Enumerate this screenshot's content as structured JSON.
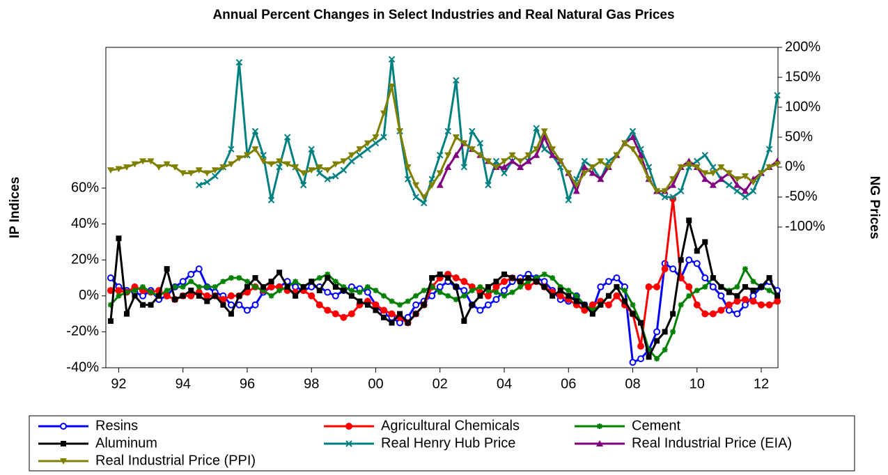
{
  "chart_data": {
    "type": "line",
    "title": "Annual Percent Changes in Select Industries and Real Natural Gas Prices",
    "y_label": "IP Indices",
    "y2_label": "NG Prices",
    "x": [
      1991.75,
      1992,
      1992.25,
      1992.5,
      1992.75,
      1993,
      1993.25,
      1993.5,
      1993.75,
      1994,
      1994.25,
      1994.5,
      1994.75,
      1995,
      1995.25,
      1995.5,
      1995.75,
      1996,
      1996.25,
      1996.5,
      1996.75,
      1997,
      1997.25,
      1997.5,
      1997.75,
      1998,
      1998.25,
      1998.5,
      1998.75,
      1999,
      1999.25,
      1999.5,
      1999.75,
      2000,
      2000.25,
      2000.5,
      2000.75,
      2001,
      2001.25,
      2001.5,
      2001.75,
      2002,
      2002.25,
      2002.5,
      2002.75,
      2003,
      2003.25,
      2003.5,
      2003.75,
      2004,
      2004.25,
      2004.5,
      2004.75,
      2005,
      2005.25,
      2005.5,
      2005.75,
      2006,
      2006.25,
      2006.5,
      2006.75,
      2007,
      2007.25,
      2007.5,
      2007.75,
      2008,
      2008.25,
      2008.5,
      2008.75,
      2009,
      2009.25,
      2009.5,
      2009.75,
      2010,
      2010.25,
      2010.5,
      2010.75,
      2011,
      2011.25,
      2011.5,
      2011.75,
      2012,
      2012.25,
      2012.5
    ],
    "xlim": [
      1991.6,
      2012.52
    ],
    "xticks": [
      {
        "value": 1992,
        "label": "92"
      },
      {
        "value": 1994,
        "label": "94"
      },
      {
        "value": 1996,
        "label": "96"
      },
      {
        "value": 1998,
        "label": "98"
      },
      {
        "value": 2000,
        "label": "00"
      },
      {
        "value": 2002,
        "label": "02"
      },
      {
        "value": 2004,
        "label": "04"
      },
      {
        "value": 2006,
        "label": "06"
      },
      {
        "value": 2008,
        "label": "08"
      },
      {
        "value": 2010,
        "label": "10"
      },
      {
        "value": 2012,
        "label": "12"
      }
    ],
    "ylim": [
      -40,
      138.3
    ],
    "yticks": [
      {
        "value": -40,
        "label": "-40%"
      },
      {
        "value": -20,
        "label": "-20%"
      },
      {
        "value": 0,
        "label": "0%"
      },
      {
        "value": 20,
        "label": "20%"
      },
      {
        "value": 40,
        "label": "40%"
      },
      {
        "value": 60,
        "label": "60%"
      }
    ],
    "y2lim": [
      -335,
      200
    ],
    "y2ticks": [
      {
        "value": -100,
        "label": "-100%"
      },
      {
        "value": -50,
        "label": "-50%"
      },
      {
        "value": 0,
        "label": "0%"
      },
      {
        "value": 50,
        "label": "50%"
      },
      {
        "value": 100,
        "label": "100%"
      },
      {
        "value": 150,
        "label": "150%"
      },
      {
        "value": 200,
        "label": "200%"
      }
    ],
    "legend": "bottom",
    "series": [
      {
        "name": "Resins",
        "color": "#0000ff",
        "marker": "circle-open",
        "values": [
          10,
          5,
          3,
          2,
          0,
          3,
          -2,
          0,
          5,
          8,
          12,
          15,
          5,
          2,
          0,
          -5,
          -5,
          -8,
          -5,
          2,
          5,
          5,
          8,
          5,
          3,
          5,
          5,
          2,
          0,
          3,
          5,
          4,
          2,
          -5,
          -10,
          -12,
          -15,
          -12,
          -5,
          -3,
          0,
          5,
          8,
          5,
          3,
          -5,
          -8,
          -5,
          -2,
          3,
          8,
          10,
          12,
          10,
          8,
          3,
          -2,
          -3,
          0,
          -5,
          -8,
          5,
          8,
          10,
          5,
          -37,
          -35,
          -30,
          -20,
          18,
          15,
          10,
          20,
          18,
          10,
          5,
          0,
          -8,
          -10,
          -5,
          0,
          5,
          8,
          3
        ]
      },
      {
        "name": "Agricultural Chemicals",
        "color": "#ff0000",
        "marker": "circle",
        "values": [
          3,
          3,
          2,
          5,
          3,
          2,
          3,
          0,
          -2,
          0,
          0,
          2,
          0,
          0,
          -2,
          0,
          0,
          2,
          5,
          3,
          5,
          5,
          3,
          2,
          3,
          0,
          -5,
          -8,
          -10,
          -12,
          -10,
          -5,
          -3,
          -5,
          -8,
          -10,
          -12,
          -15,
          -10,
          -5,
          5,
          10,
          12,
          10,
          8,
          5,
          2,
          0,
          5,
          8,
          10,
          8,
          5,
          8,
          5,
          2,
          0,
          -2,
          -5,
          -8,
          -5,
          -3,
          -5,
          0,
          -5,
          -10,
          -28,
          5,
          5,
          15,
          54,
          10,
          5,
          -5,
          -10,
          -10,
          -8,
          -5,
          -3,
          -2,
          -3,
          -5,
          -5,
          -3
        ]
      },
      {
        "name": "Cement",
        "color": "#008000",
        "marker": "star",
        "values": [
          -5,
          0,
          2,
          3,
          5,
          2,
          0,
          3,
          5,
          5,
          8,
          5,
          5,
          5,
          8,
          10,
          10,
          8,
          5,
          3,
          0,
          3,
          5,
          8,
          5,
          8,
          10,
          12,
          8,
          5,
          3,
          2,
          5,
          3,
          0,
          -3,
          -5,
          -3,
          0,
          3,
          5,
          2,
          0,
          -2,
          0,
          3,
          5,
          3,
          2,
          0,
          2,
          5,
          8,
          10,
          12,
          10,
          5,
          3,
          0,
          -5,
          -8,
          -5,
          0,
          5,
          3,
          -5,
          -15,
          -30,
          -35,
          -30,
          -20,
          -5,
          0,
          3,
          5,
          10,
          5,
          3,
          5,
          15,
          8,
          5,
          3,
          0
        ]
      },
      {
        "name": "Aluminum",
        "color": "#000000",
        "marker": "square",
        "values": [
          -14,
          32,
          -10,
          0,
          -5,
          -5,
          0,
          15,
          -2,
          0,
          3,
          0,
          -3,
          0,
          -5,
          -10,
          0,
          5,
          10,
          5,
          8,
          13,
          5,
          0,
          5,
          8,
          3,
          10,
          5,
          3,
          0,
          -3,
          -5,
          -8,
          -12,
          -15,
          -10,
          -15,
          -10,
          -5,
          10,
          12,
          10,
          5,
          -14,
          -5,
          0,
          5,
          8,
          12,
          10,
          8,
          10,
          8,
          5,
          0,
          3,
          0,
          -3,
          -5,
          -10,
          -5,
          0,
          5,
          -3,
          -10,
          -15,
          -34,
          -25,
          -20,
          -10,
          20,
          42,
          25,
          30,
          10,
          5,
          2,
          0,
          5,
          3,
          5,
          10,
          0
        ]
      },
      {
        "name": "Real Henry Hub Price",
        "color": "#008080",
        "marker": "x",
        "axis": "y2",
        "values": [
          null,
          null,
          null,
          null,
          null,
          null,
          null,
          null,
          null,
          null,
          null,
          -30,
          -25,
          -15,
          0,
          30,
          175,
          20,
          60,
          20,
          -55,
          0,
          50,
          0,
          -30,
          30,
          -10,
          -20,
          -15,
          -5,
          10,
          20,
          30,
          40,
          50,
          180,
          60,
          -20,
          -50,
          -60,
          -20,
          20,
          60,
          145,
          0,
          60,
          40,
          -30,
          10,
          -10,
          10,
          0,
          10,
          65,
          30,
          20,
          0,
          -55,
          -20,
          10,
          0,
          -20,
          10,
          20,
          40,
          60,
          30,
          0,
          -40,
          -50,
          -50,
          -40,
          0,
          10,
          20,
          0,
          -20,
          -30,
          -40,
          -50,
          -40,
          -10,
          30,
          120
        ]
      },
      {
        "name": "Real Industrial Price (EIA)",
        "color": "#800080",
        "marker": "triangle",
        "axis": "y2",
        "values": [
          null,
          null,
          null,
          null,
          null,
          null,
          null,
          null,
          null,
          null,
          null,
          null,
          null,
          null,
          null,
          null,
          null,
          null,
          null,
          null,
          null,
          null,
          null,
          null,
          null,
          null,
          null,
          null,
          null,
          null,
          null,
          null,
          null,
          null,
          null,
          null,
          null,
          null,
          null,
          null,
          null,
          -30,
          0,
          20,
          40,
          30,
          20,
          10,
          0,
          0,
          10,
          0,
          10,
          20,
          50,
          20,
          10,
          -10,
          -40,
          0,
          -10,
          -20,
          0,
          20,
          40,
          50,
          20,
          -20,
          -40,
          -40,
          -30,
          0,
          10,
          0,
          -20,
          -30,
          -20,
          -10,
          -30,
          -40,
          -20,
          -10,
          0,
          10
        ]
      },
      {
        "name": "Real Industrial Price (PPI)",
        "color": "#808000",
        "marker": "triangle-down",
        "axis": "y2",
        "values": [
          -5,
          -3,
          0,
          5,
          10,
          10,
          0,
          5,
          0,
          -10,
          -10,
          -5,
          -10,
          -5,
          0,
          5,
          15,
          20,
          30,
          10,
          5,
          10,
          5,
          0,
          -10,
          -5,
          0,
          -5,
          5,
          10,
          20,
          30,
          40,
          50,
          90,
          135,
          60,
          0,
          -30,
          -50,
          -30,
          -10,
          20,
          50,
          40,
          30,
          20,
          10,
          0,
          10,
          20,
          10,
          20,
          30,
          60,
          30,
          10,
          -10,
          -30,
          -10,
          0,
          10,
          0,
          20,
          40,
          30,
          10,
          -20,
          -40,
          -40,
          -20,
          0,
          5,
          0,
          -10,
          -10,
          0,
          -10,
          -20,
          -15,
          -25,
          -10,
          0,
          5
        ]
      }
    ]
  }
}
